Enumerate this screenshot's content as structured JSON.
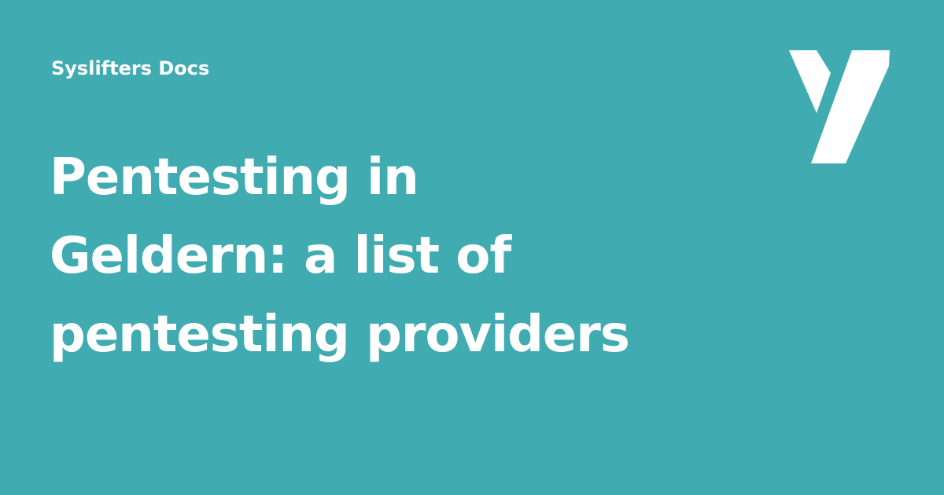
{
  "site_name": "Syslifters Docs",
  "title_lines": [
    "Pentesting in",
    "Geldern: a list of",
    "pentesting providers"
  ],
  "logo": {
    "icon": "syslifters-y-logo-icon",
    "color": "#ffffff"
  },
  "colors": {
    "background": "#40abb1",
    "text": "#ffffff"
  }
}
